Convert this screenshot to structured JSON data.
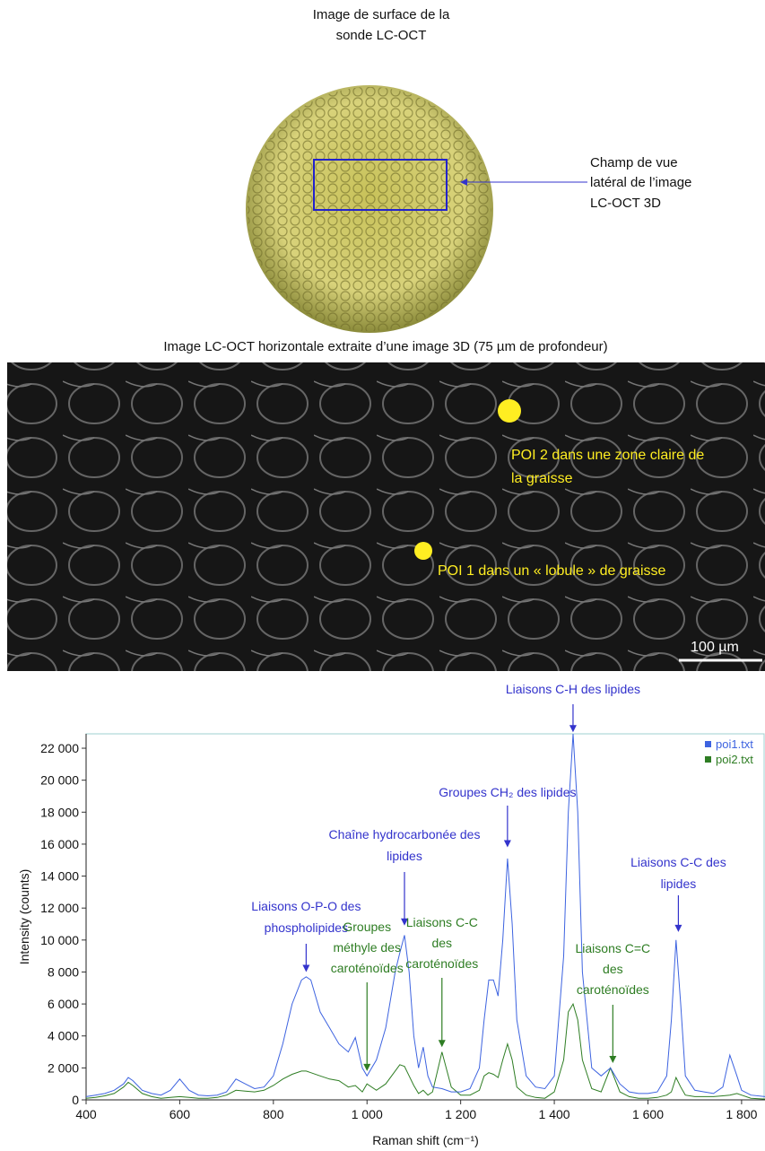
{
  "top_panel": {
    "title": [
      "Image de surface de la",
      "sonde LC-OCT"
    ],
    "annotation": [
      "Champ de vue",
      "latéral de l’image",
      "LC-OCT 3D"
    ]
  },
  "middle_panel": {
    "title": "Image LC-OCT horizontale extraite d’une image 3D (75 µm de profondeur)",
    "poi2": [
      "POI 2 dans une zone claire de",
      "la graisse"
    ],
    "poi1": "POI 1 dans un « lobule » de graisse",
    "scale_bar": "100 µm"
  },
  "chart_data": {
    "type": "line",
    "x_label": "Raman shift (cm⁻¹)",
    "y_label": "Intensity (counts)",
    "xlim": [
      400,
      1850
    ],
    "ylim": [
      0,
      22900
    ],
    "xticks": [
      400,
      600,
      800,
      {
        "value": 1000,
        "label": "1 000"
      },
      {
        "value": 1200,
        "label": "1 200"
      },
      {
        "value": 1400,
        "label": "1 400"
      },
      {
        "value": 1600,
        "label": "1 600"
      },
      {
        "value": 1800,
        "label": "1 800"
      }
    ],
    "yticks": [
      0,
      {
        "value": 2000,
        "label": "2 000"
      },
      {
        "value": 4000,
        "label": "4 000"
      },
      {
        "value": 6000,
        "label": "6 000"
      },
      {
        "value": 8000,
        "label": "8 000"
      },
      {
        "value": 10000,
        "label": "10 000"
      },
      {
        "value": 12000,
        "label": "12 000"
      },
      {
        "value": 14000,
        "label": "14 000"
      },
      {
        "value": 16000,
        "label": "16 000"
      },
      {
        "value": 18000,
        "label": "18 000"
      },
      {
        "value": 20000,
        "label": "20 000"
      },
      {
        "value": 22000,
        "label": "22 000"
      }
    ],
    "legend": "top-right",
    "x": [
      400,
      420,
      440,
      460,
      480,
      490,
      500,
      520,
      540,
      560,
      580,
      600,
      620,
      640,
      660,
      680,
      700,
      720,
      740,
      760,
      780,
      800,
      820,
      840,
      860,
      870,
      880,
      900,
      920,
      940,
      960,
      975,
      990,
      1000,
      1020,
      1040,
      1060,
      1070,
      1080,
      1090,
      1100,
      1110,
      1120,
      1130,
      1140,
      1160,
      1180,
      1200,
      1220,
      1240,
      1250,
      1260,
      1270,
      1280,
      1290,
      1300,
      1310,
      1320,
      1340,
      1360,
      1380,
      1400,
      1420,
      1430,
      1440,
      1450,
      1460,
      1480,
      1500,
      1520,
      1540,
      1560,
      1580,
      1600,
      1620,
      1640,
      1650,
      1660,
      1670,
      1680,
      1700,
      1720,
      1740,
      1760,
      1775,
      1790,
      1800,
      1820,
      1850
    ],
    "series": [
      {
        "name": "poi1.txt",
        "color": "#3d63e0",
        "values": [
          200,
          300,
          400,
          600,
          1000,
          1400,
          1200,
          600,
          400,
          300,
          600,
          1300,
          600,
          300,
          250,
          300,
          500,
          1300,
          1000,
          700,
          800,
          1500,
          3500,
          6000,
          7500,
          7700,
          7500,
          5500,
          4500,
          3500,
          3000,
          3900,
          2000,
          1500,
          2500,
          4500,
          8000,
          9200,
          10300,
          8000,
          4000,
          2000,
          3300,
          1500,
          800,
          700,
          500,
          500,
          700,
          2000,
          5000,
          7500,
          7500,
          6500,
          10000,
          15100,
          11000,
          5000,
          1500,
          800,
          700,
          1500,
          9000,
          18000,
          22900,
          18000,
          8000,
          2000,
          1500,
          2000,
          1000,
          500,
          400,
          400,
          500,
          1500,
          5000,
          10000,
          6000,
          1500,
          600,
          500,
          400,
          800,
          2800,
          1500,
          600,
          300,
          200
        ]
      },
      {
        "name": "poi2.txt",
        "color": "#2e7d23",
        "values": [
          100,
          150,
          250,
          400,
          800,
          1100,
          900,
          400,
          200,
          100,
          150,
          200,
          150,
          100,
          100,
          150,
          300,
          600,
          550,
          500,
          600,
          900,
          1300,
          1600,
          1800,
          1800,
          1700,
          1500,
          1300,
          1200,
          800,
          900,
          500,
          1000,
          600,
          1000,
          1800,
          2200,
          2100,
          1500,
          900,
          400,
          600,
          300,
          500,
          3000,
          800,
          300,
          300,
          600,
          1500,
          1700,
          1600,
          1400,
          2500,
          3500,
          2500,
          800,
          300,
          150,
          100,
          500,
          2500,
          5500,
          6000,
          5000,
          2500,
          700,
          500,
          2000,
          500,
          200,
          100,
          100,
          150,
          300,
          500,
          1400,
          800,
          300,
          200,
          200,
          200,
          250,
          300,
          400,
          300,
          100,
          50
        ]
      }
    ],
    "annotations": [
      {
        "text": [
          "Liaisons C-H des lipides"
        ],
        "color": "#3333cc",
        "x": 1440,
        "y": 23000
      },
      {
        "text": [
          "Groupes CH₂ des lipides"
        ],
        "color": "#3333cc",
        "x": 1300,
        "y": 15800
      },
      {
        "text": [
          "Chaîne hydrocarbonée des",
          "lipides"
        ],
        "color": "#3333cc",
        "x": 1080,
        "y": 10900
      },
      {
        "text": [
          "Liaisons O-P-O des",
          "phospholipides"
        ],
        "color": "#3333cc",
        "x": 870,
        "y": 8000
      },
      {
        "text": [
          "Groupes",
          "méthyle des",
          "caroténoïdes"
        ],
        "color": "#2e7d23",
        "x": 1000,
        "y": 1800
      },
      {
        "text": [
          "Liaisons C-C",
          "des",
          "caroténoïdes"
        ],
        "color": "#2e7d23",
        "x": 1160,
        "y": 3300
      },
      {
        "text": [
          "Liaisons C=C",
          "des",
          "caroténoïdes"
        ],
        "color": "#2e7d23",
        "x": 1525,
        "y": 2300
      },
      {
        "text": [
          "Liaisons C-C des",
          "lipides"
        ],
        "color": "#3333cc",
        "x": 1665,
        "y": 10500
      }
    ]
  }
}
